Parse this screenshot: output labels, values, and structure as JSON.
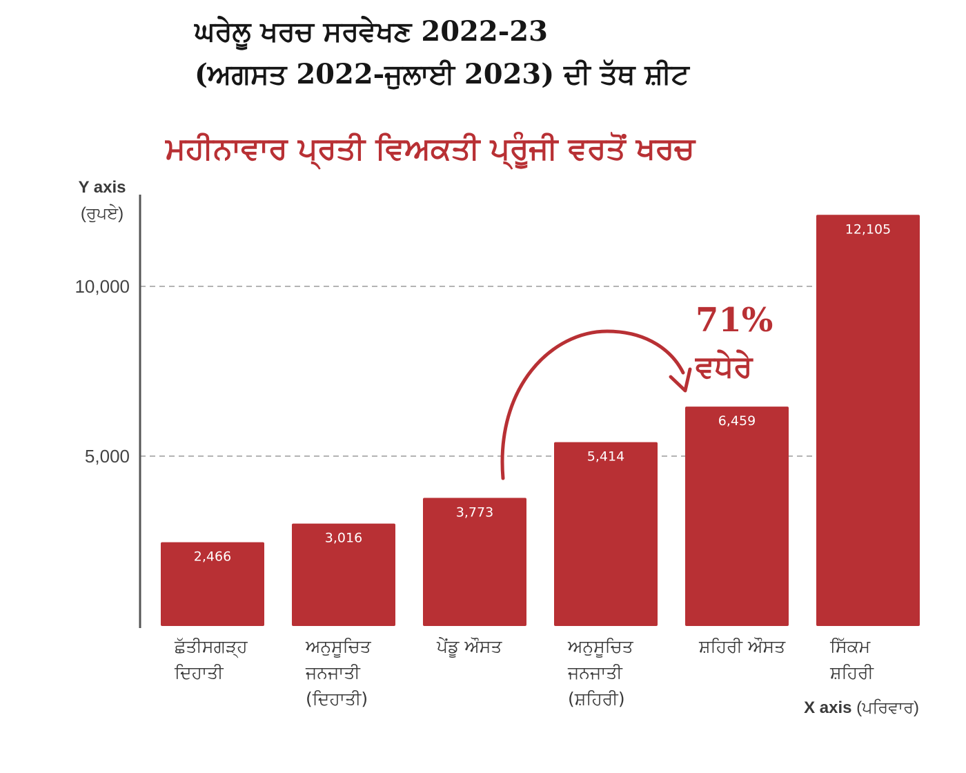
{
  "header": {
    "title_line1": "ਘਰੇਲੂ ਖਰਚ ਸਰਵੇਖਣ 2022-23",
    "title_line2": "(ਅਗਸਤ 2022-ਜੁਲਾਈ 2023) ਦੀ ਤੱਥ ਸ਼ੀਟ"
  },
  "colors": {
    "bar": "#b83034",
    "axis": "#555555",
    "grid": "#9a9a9a",
    "accent_text": "#b83034"
  },
  "annotation": {
    "percent": "71%",
    "word": "ਵਧੇਰੇ"
  },
  "chart_data": {
    "type": "bar",
    "title": "ਮਹੀਨਾਵਾਰ ਪ੍ਰਤੀ ਵਿਅਕਤੀ ਪ੍ਰੂੰਜੀ ਵਰਤੋਂ ਖਰਚ",
    "ylabel_main": "Y axis",
    "ylabel_unit": "(ਰੁਪਏ)",
    "xlabel_main": "X axis",
    "xlabel_unit": "(ਪਰਿਵਾਰ)",
    "ylim": [
      0,
      12700
    ],
    "yticks": [
      5000,
      10000
    ],
    "ytick_labels": [
      "5,000",
      "10,000"
    ],
    "grid": "dashed horizontal at ticks",
    "categories": [
      [
        "ਛੱਤੀਸਗੜ੍ਹ",
        "ਦਿਹਾਤੀ"
      ],
      [
        "ਅਨੁਸੂਚਿਤ",
        "ਜਨਜਾਤੀ",
        "(ਦਿਹਾਤੀ)"
      ],
      [
        "ਪੇਂਡੂ ਔਸਤ"
      ],
      [
        "ਅਨੁਸੂਚਿਤ",
        "ਜਨਜਾਤੀ",
        "(ਸ਼ਹਿਰੀ)"
      ],
      [
        "ਸ਼ਹਿਰੀ ਔਸਤ"
      ],
      [
        "ਸਿੱਕਮ",
        "ਸ਼ਹਿਰੀ"
      ]
    ],
    "values": [
      2466,
      3016,
      3773,
      5414,
      6459,
      12105
    ],
    "value_labels": [
      "2,466",
      "3,016",
      "3,773",
      "5,414",
      "6,459",
      "12,105"
    ]
  }
}
